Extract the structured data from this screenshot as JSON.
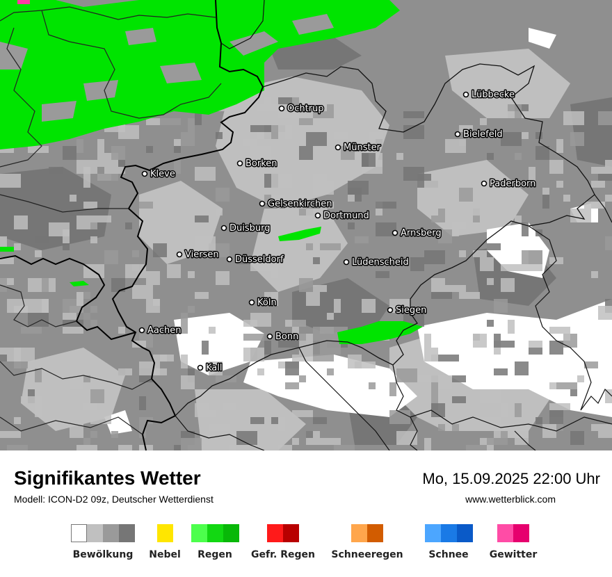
{
  "map": {
    "colors": {
      "background": "#8f8f8f",
      "cloud_white": "#ffffff",
      "cloud_light": "#bfbfbf",
      "cloud_mid": "#9a9a9a",
      "cloud_dark": "#767676",
      "rain": "#00e400",
      "thunder": "#ff3aa4",
      "border": "#000000"
    },
    "cities": [
      {
        "name": "Ochtrup"
      },
      {
        "name": "Lübbecke"
      },
      {
        "name": "Bielefeld"
      },
      {
        "name": "Münster"
      },
      {
        "name": "Borken"
      },
      {
        "name": "Kleve"
      },
      {
        "name": "Paderborn"
      },
      {
        "name": "Gelsenkirchen"
      },
      {
        "name": "Dortmund"
      },
      {
        "name": "Duisburg"
      },
      {
        "name": "Arnsberg"
      },
      {
        "name": "Viersen"
      },
      {
        "name": "Düsseldorf"
      },
      {
        "name": "Lüdenscheid"
      },
      {
        "name": "Köln"
      },
      {
        "name": "Siegen"
      },
      {
        "name": "Aachen"
      },
      {
        "name": "Bonn"
      },
      {
        "name": "Kall"
      }
    ]
  },
  "footer": {
    "title": "Signifikantes Wetter",
    "subtitle": "Modell: ICON-D2 09z, Deutscher Wetterdienst",
    "datetime": "Mo, 15.09.2025 22:00 Uhr",
    "website": "www.wetterblick.com"
  },
  "legend": [
    {
      "label": "Bewölkung",
      "colors": [
        "#ffffff",
        "#c0c0c0",
        "#9a9a9a",
        "#767676"
      ]
    },
    {
      "label": "Nebel",
      "colors": [
        "#ffe600"
      ]
    },
    {
      "label": "Regen",
      "colors": [
        "#4cff4c",
        "#12d812",
        "#08b808"
      ]
    },
    {
      "label": "Gefr. Regen",
      "colors": [
        "#ff1a1a",
        "#b80000"
      ]
    },
    {
      "label": "Schneeregen",
      "colors": [
        "#ffa64c",
        "#d25c00"
      ]
    },
    {
      "label": "Schnee",
      "colors": [
        "#4ca6ff",
        "#1a7ae6",
        "#0a5ac8"
      ]
    },
    {
      "label": "Gewitter",
      "colors": [
        "#ff4ca6",
        "#e6006e"
      ]
    }
  ]
}
